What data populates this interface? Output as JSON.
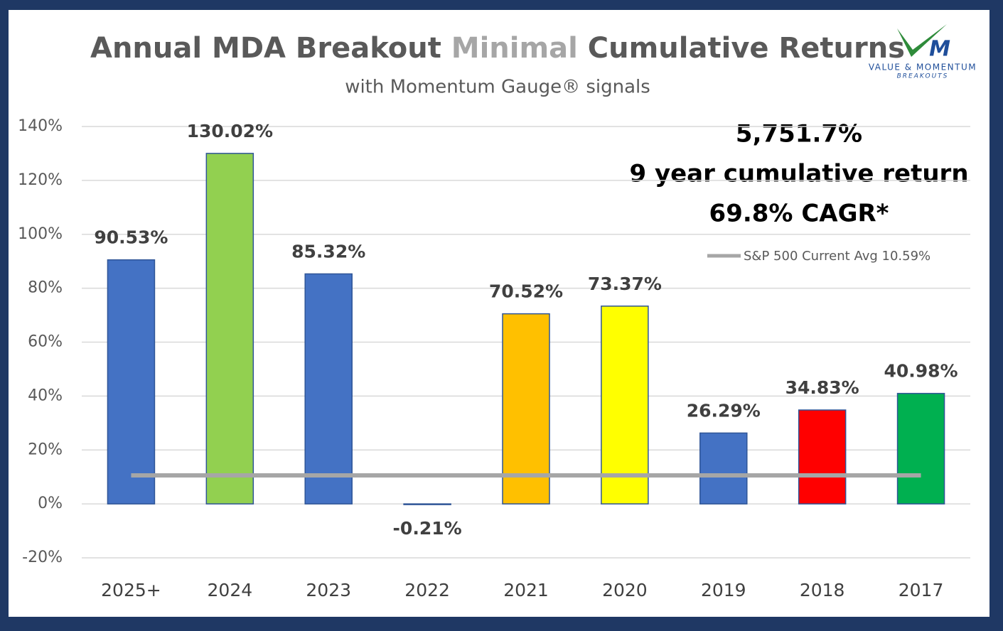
{
  "chart_data": {
    "type": "bar",
    "title": [
      "Annual MDA Breakout",
      "Minimal",
      "Cumulative Returns"
    ],
    "title_colors": [
      "#595959",
      "#a6a6a6",
      "#595959"
    ],
    "subtitle": "with Momentum Gauge® signals",
    "annotations": [
      "5,751.7%",
      "9 year cumulative return",
      "69.8% CAGR*"
    ],
    "logo": {
      "letter": "M",
      "name": "VALUE & MOMENTUM",
      "tagline": "BREAKOUTS"
    },
    "categories": [
      "2025+",
      "2024",
      "2023",
      "2022",
      "2021",
      "2020",
      "2019",
      "2018",
      "2017"
    ],
    "values": [
      90.53,
      130.02,
      85.32,
      -0.21,
      70.52,
      73.37,
      26.29,
      34.83,
      40.98
    ],
    "value_labels": [
      "90.53%",
      "130.02%",
      "85.32%",
      "-0.21%",
      "70.52%",
      "73.37%",
      "26.29%",
      "34.83%",
      "40.98%"
    ],
    "colors": [
      "#4472c4",
      "#92d050",
      "#4472c4",
      "#4472c4",
      "#ffc000",
      "#ffff00",
      "#4472c4",
      "#ff0000",
      "#00b050"
    ],
    "reference_line": {
      "name": "S&P 500 Current Avg 10.59%",
      "value": 10.59,
      "color": "#a6a6a6"
    },
    "ylim": [
      -20,
      140
    ],
    "yticks": [
      {
        "value": -20,
        "label": "-20%"
      },
      {
        "value": 0,
        "label": "0%"
      },
      {
        "value": 20,
        "label": "20%"
      },
      {
        "value": 40,
        "label": "40%"
      },
      {
        "value": 60,
        "label": "60%"
      },
      {
        "value": 80,
        "label": "80%"
      },
      {
        "value": 100,
        "label": "100%"
      },
      {
        "value": 120,
        "label": "120%"
      },
      {
        "value": 140,
        "label": "140%"
      }
    ],
    "grid": true
  }
}
